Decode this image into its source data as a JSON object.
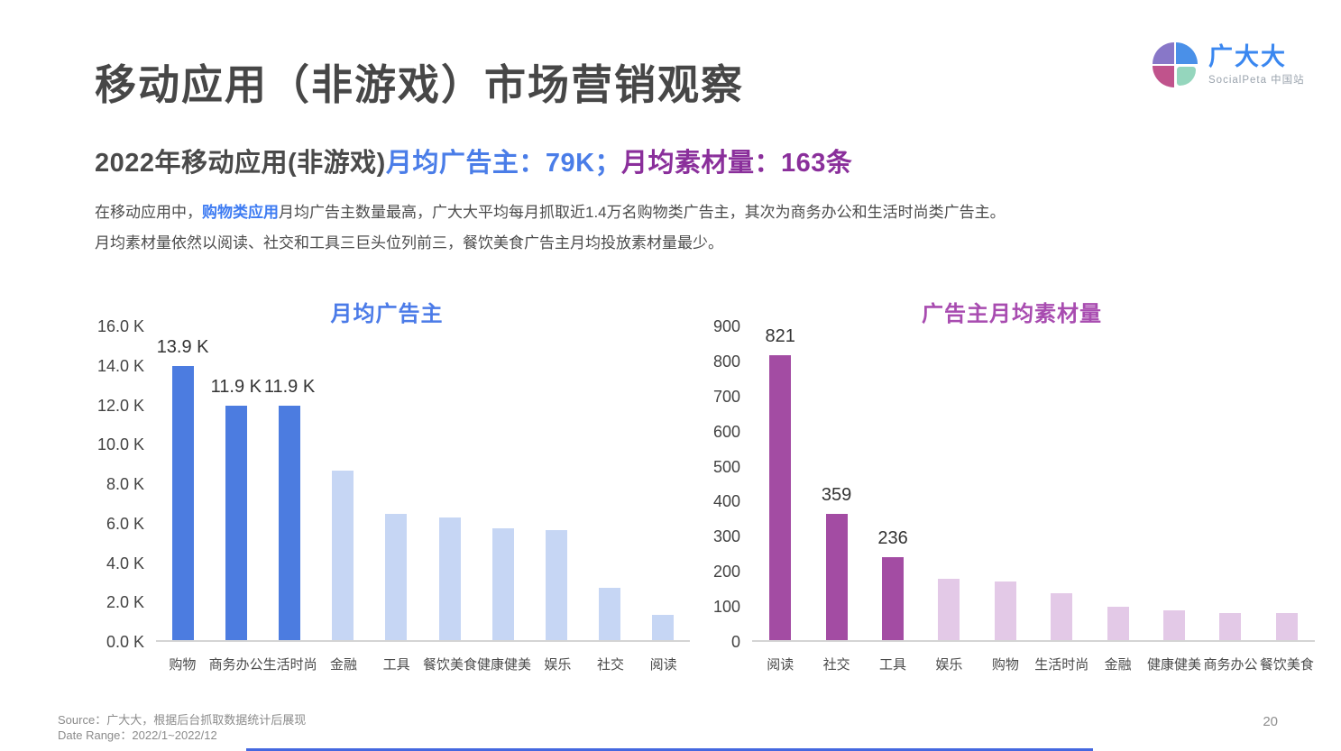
{
  "header": {
    "title": "移动应用（非游戏）市场营销观察",
    "subtitle_part1": "2022年移动应用(非游戏)",
    "subtitle_part2": "月均广告主：79K；",
    "subtitle_part3": "月均素材量：163条",
    "body_line1_pre": "在移动应用中，",
    "body_line1_highlight": "购物类应用",
    "body_line1_post": "月均广告主数量最高，广大大平均每月抓取近1.4万名购物类广告主，其次为商务办公和生活时尚类广告主。",
    "body_line2": "月均素材量依然以阅读、社交和工具三巨头位列前三，餐饮美食广告主月均投放素材量最少。"
  },
  "logo": {
    "brand": "广大大",
    "sub": "SocialPeta 中国站",
    "colors": {
      "tl": "#8877c8",
      "tr": "#4a90e8",
      "bl": "#c0538c",
      "br": "#95d6bd"
    }
  },
  "chart_data": [
    {
      "type": "bar",
      "title": "月均广告主",
      "title_color": "#4b7be8",
      "categories": [
        "购物",
        "商务办公",
        "生活时尚",
        "金融",
        "工具",
        "餐饮美食",
        "健康健美",
        "娱乐",
        "社交",
        "阅读"
      ],
      "values": [
        13900,
        11900,
        11900,
        8600,
        6400,
        6200,
        5650,
        5600,
        2650,
        1300
      ],
      "data_labels": [
        "13.9 K",
        "11.9 K",
        "11.9 K",
        null,
        null,
        null,
        null,
        null,
        null,
        null
      ],
      "ylim": [
        0,
        16000
      ],
      "yticks": [
        "16.0 K",
        "14.0 K",
        "12.0 K",
        "10.0 K",
        "8.0 K",
        "6.0 K",
        "4.0 K",
        "2.0 K",
        "0.0 K"
      ],
      "bar_colors": {
        "highlight": "#4c7ce0",
        "default": "#c6d6f4"
      },
      "highlight_count": 3,
      "grid": false,
      "legend": false,
      "xlabel": "",
      "ylabel": ""
    },
    {
      "type": "bar",
      "title": "广告主月均素材量",
      "title_color": "#a84cb0",
      "categories": [
        "阅读",
        "社交",
        "工具",
        "娱乐",
        "购物",
        "生活时尚",
        "金融",
        "健康健美",
        "商务办公",
        "餐饮美食"
      ],
      "values": [
        821,
        359,
        236,
        175,
        168,
        133,
        96,
        86,
        77,
        77
      ],
      "data_labels": [
        "821",
        "359",
        "236",
        null,
        null,
        null,
        null,
        null,
        null,
        null
      ],
      "ylim": [
        0,
        900
      ],
      "yticks": [
        "900",
        "800",
        "700",
        "600",
        "500",
        "400",
        "300",
        "200",
        "100",
        "0"
      ],
      "bar_colors": {
        "highlight": "#a34ca3",
        "default": "#e3c9e7"
      },
      "highlight_count": 3,
      "grid": false,
      "legend": false,
      "xlabel": "",
      "ylabel": ""
    }
  ],
  "footer": {
    "source": "Source：广大大，根据后台抓取数据统计后展现",
    "date_range": "Date Range：2022/1~2022/12",
    "page_number": "20"
  },
  "accent": {
    "bottom_line_color": "#4468e0"
  }
}
